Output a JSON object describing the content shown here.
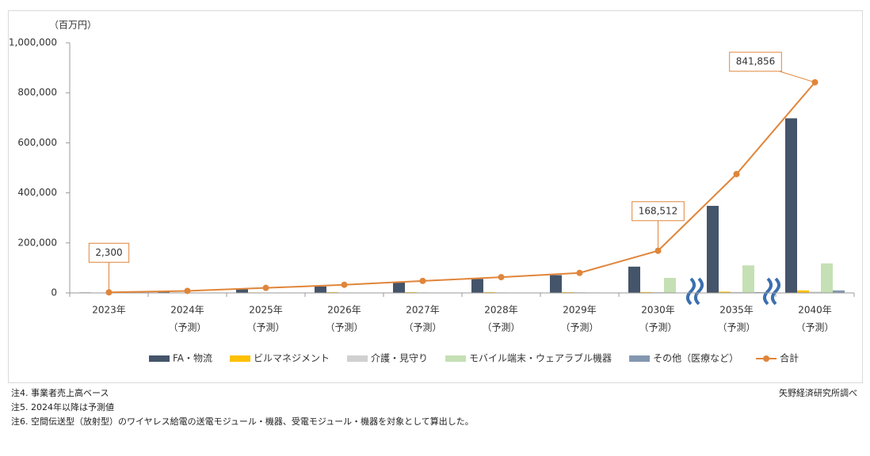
{
  "chart_data": {
    "type": "bar",
    "y_unit": "（百万円）",
    "categories": [
      "2023年",
      "2024年",
      "2025年",
      "2026年",
      "2027年",
      "2028年",
      "2029年",
      "2030年",
      "2035年",
      "2040年"
    ],
    "category_notes": [
      null,
      "（予測）",
      "（予測）",
      "（予測）",
      "（予測）",
      "（予測）",
      "（予測）",
      "（予測）",
      "（予測）",
      "（予測）"
    ],
    "series": [
      {
        "name": "FA・物流",
        "color": "#44546a",
        "values": [
          2000,
          5000,
          15000,
          26000,
          41000,
          56000,
          71000,
          105000,
          348000,
          698000
        ]
      },
      {
        "name": "ビルマネジメント",
        "color": "#ffc000",
        "values": [
          300,
          1000,
          2000,
          3000,
          3000,
          3000,
          3000,
          3500,
          5000,
          10000
        ]
      },
      {
        "name": "介護・見守り",
        "color": "#d0d0d0",
        "values": [
          0,
          500,
          1000,
          1500,
          2000,
          2000,
          2500,
          3000,
          4000,
          5000
        ]
      },
      {
        "name": "モバイル端末・ウェアラブル機器",
        "color": "#c5e0b4",
        "values": [
          0,
          1000,
          1500,
          1500,
          1500,
          1500,
          2000,
          60000,
          110000,
          118000
        ]
      },
      {
        "name": "その他（医療など）",
        "color": "#8497b0",
        "values": [
          0,
          500,
          500,
          500,
          500,
          500,
          1000,
          1500,
          3000,
          10000
        ]
      },
      {
        "name": "合計",
        "color": "#e0853a",
        "kind": "line",
        "values": [
          2300,
          8000,
          20000,
          32500,
          48000,
          63000,
          80000,
          168512,
          475000,
          841856
        ],
        "value_labels": [
          "2,300",
          null,
          null,
          null,
          null,
          null,
          null,
          "168,512",
          null,
          "841,856"
        ]
      }
    ],
    "ylim": [
      0,
      1000000
    ],
    "yticks": [
      0,
      {
        "value": 200000,
        "label": "200,000"
      },
      {
        "value": 400000,
        "label": "400,000"
      },
      {
        "value": 600000,
        "label": "600,000"
      },
      {
        "value": 800000,
        "label": "800,000"
      },
      {
        "value": 1000000,
        "label": "1,000,000"
      }
    ],
    "notes": [
      "注4.  事業者売上高ベース",
      "注5.  2024年以降は予測値",
      "注6.  空間伝送型（放射型）のワイヤレス給電の送電モジュール・機器、受電モジュール・機器を対象として算出した。"
    ],
    "source": "矢野経済研究所調べ"
  }
}
